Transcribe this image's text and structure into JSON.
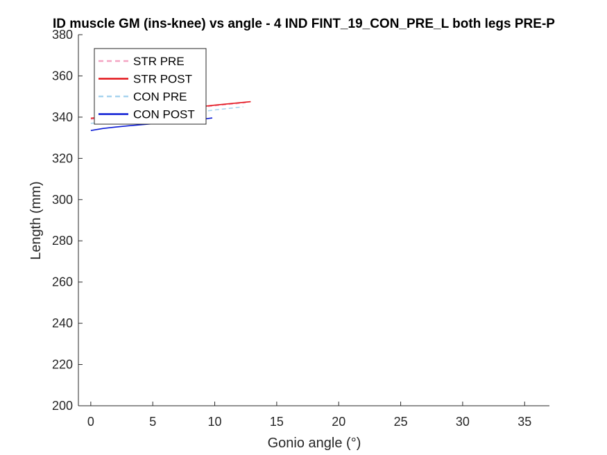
{
  "chart_data": {
    "type": "line",
    "title": "ID muscle GM (ins-knee) vs angle - 4 IND FINT_19_CON_PRE_L both legs PRE-P",
    "xlabel": "Gonio angle (°)",
    "ylabel": "Length (mm)",
    "xlim": [
      -1,
      37
    ],
    "ylim": [
      200,
      380
    ],
    "xticks": [
      0,
      5,
      10,
      15,
      20,
      25,
      30,
      35
    ],
    "yticks": [
      200,
      220,
      240,
      260,
      280,
      300,
      320,
      340,
      360,
      380
    ],
    "grid": false,
    "legend_position": "top-left",
    "series": [
      {
        "name": "STR PRE",
        "color": "#f4a3c2",
        "dash": true,
        "x": [
          0,
          2,
          4,
          6,
          8,
          10,
          12.5
        ],
        "y": [
          339,
          340,
          341,
          342.5,
          344,
          345.5,
          347
        ]
      },
      {
        "name": "STR POST",
        "color": "#e3141a",
        "dash": false,
        "x": [
          0,
          2,
          4,
          6,
          8,
          10,
          12.9
        ],
        "y": [
          339.5,
          340.5,
          341.8,
          343,
          344.5,
          345.8,
          347.5
        ]
      },
      {
        "name": "CON PRE",
        "color": "#a8d4ef",
        "dash": true,
        "x": [
          0,
          2,
          4,
          6,
          8,
          10,
          12.3
        ],
        "y": [
          337,
          338,
          339,
          340.5,
          342,
          343.5,
          345
        ]
      },
      {
        "name": "CON POST",
        "color": "#0a1ad4",
        "dash": false,
        "x": [
          0,
          1,
          2,
          3,
          4,
          5,
          6,
          7,
          8,
          9,
          9.8
        ],
        "y": [
          333.5,
          334.5,
          335.2,
          335.8,
          336.3,
          336.8,
          337.3,
          337.9,
          338.4,
          339,
          339.6
        ]
      }
    ]
  }
}
